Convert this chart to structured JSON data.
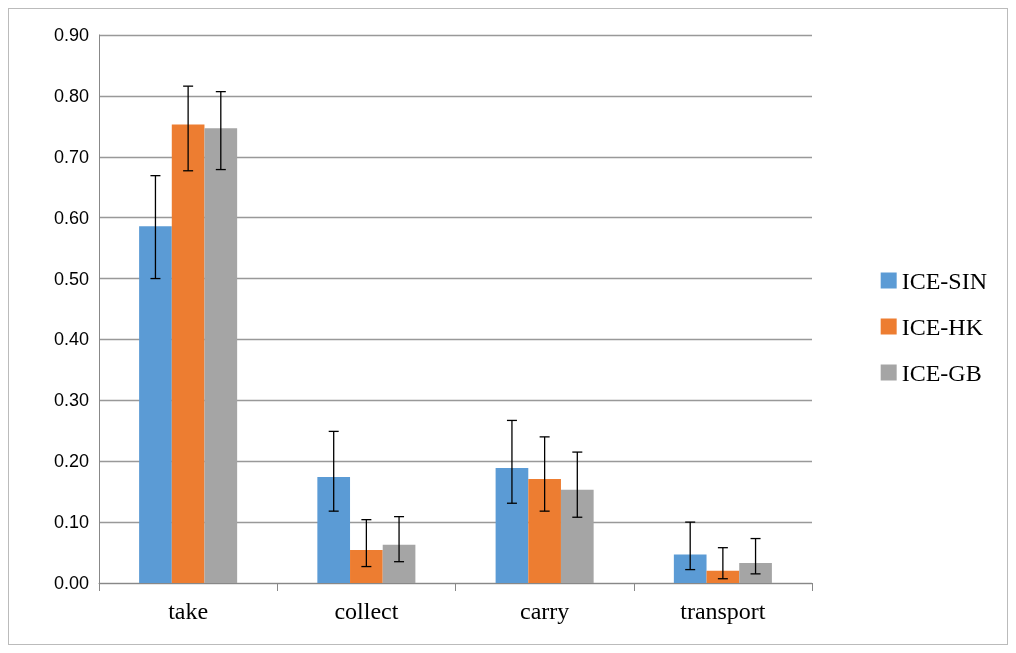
{
  "chart_data": {
    "type": "bar",
    "categories": [
      "take",
      "collect",
      "carry",
      "transport"
    ],
    "series": [
      {
        "name": "ICE-SIN",
        "color": "#5b9bd5",
        "values": [
          0.586,
          0.174,
          0.189,
          0.047
        ],
        "errors": [
          [
            0.5,
            0.669
          ],
          [
            0.118,
            0.249
          ],
          [
            0.131,
            0.267
          ],
          [
            0.022,
            0.1
          ]
        ]
      },
      {
        "name": "ICE-HK",
        "color": "#ed7d31",
        "values": [
          0.753,
          0.054,
          0.171,
          0.02
        ],
        "errors": [
          [
            0.677,
            0.816
          ],
          [
            0.027,
            0.104
          ],
          [
            0.118,
            0.24
          ],
          [
            0.007,
            0.058
          ]
        ]
      },
      {
        "name": "ICE-GB",
        "color": "#a5a5a5",
        "values": [
          0.747,
          0.063,
          0.153,
          0.033
        ],
        "errors": [
          [
            0.679,
            0.807
          ],
          [
            0.035,
            0.109
          ],
          [
            0.108,
            0.215
          ],
          [
            0.015,
            0.073
          ]
        ]
      }
    ],
    "ylim": [
      0,
      0.9
    ],
    "yticks": [
      {
        "value": 0,
        "label": "0.00"
      },
      {
        "value": 0.1,
        "label": "0.10"
      },
      {
        "value": 0.2,
        "label": "0.20"
      },
      {
        "value": 0.3,
        "label": "0.30"
      },
      {
        "value": 0.4,
        "label": "0.40"
      },
      {
        "value": 0.5,
        "label": "0.50"
      },
      {
        "value": 0.6,
        "label": "0.60"
      },
      {
        "value": 0.7,
        "label": "0.70"
      },
      {
        "value": 0.8,
        "label": "0.80"
      },
      {
        "value": 0.9,
        "label": "0.90"
      }
    ],
    "grid": "y",
    "legend": "right"
  }
}
